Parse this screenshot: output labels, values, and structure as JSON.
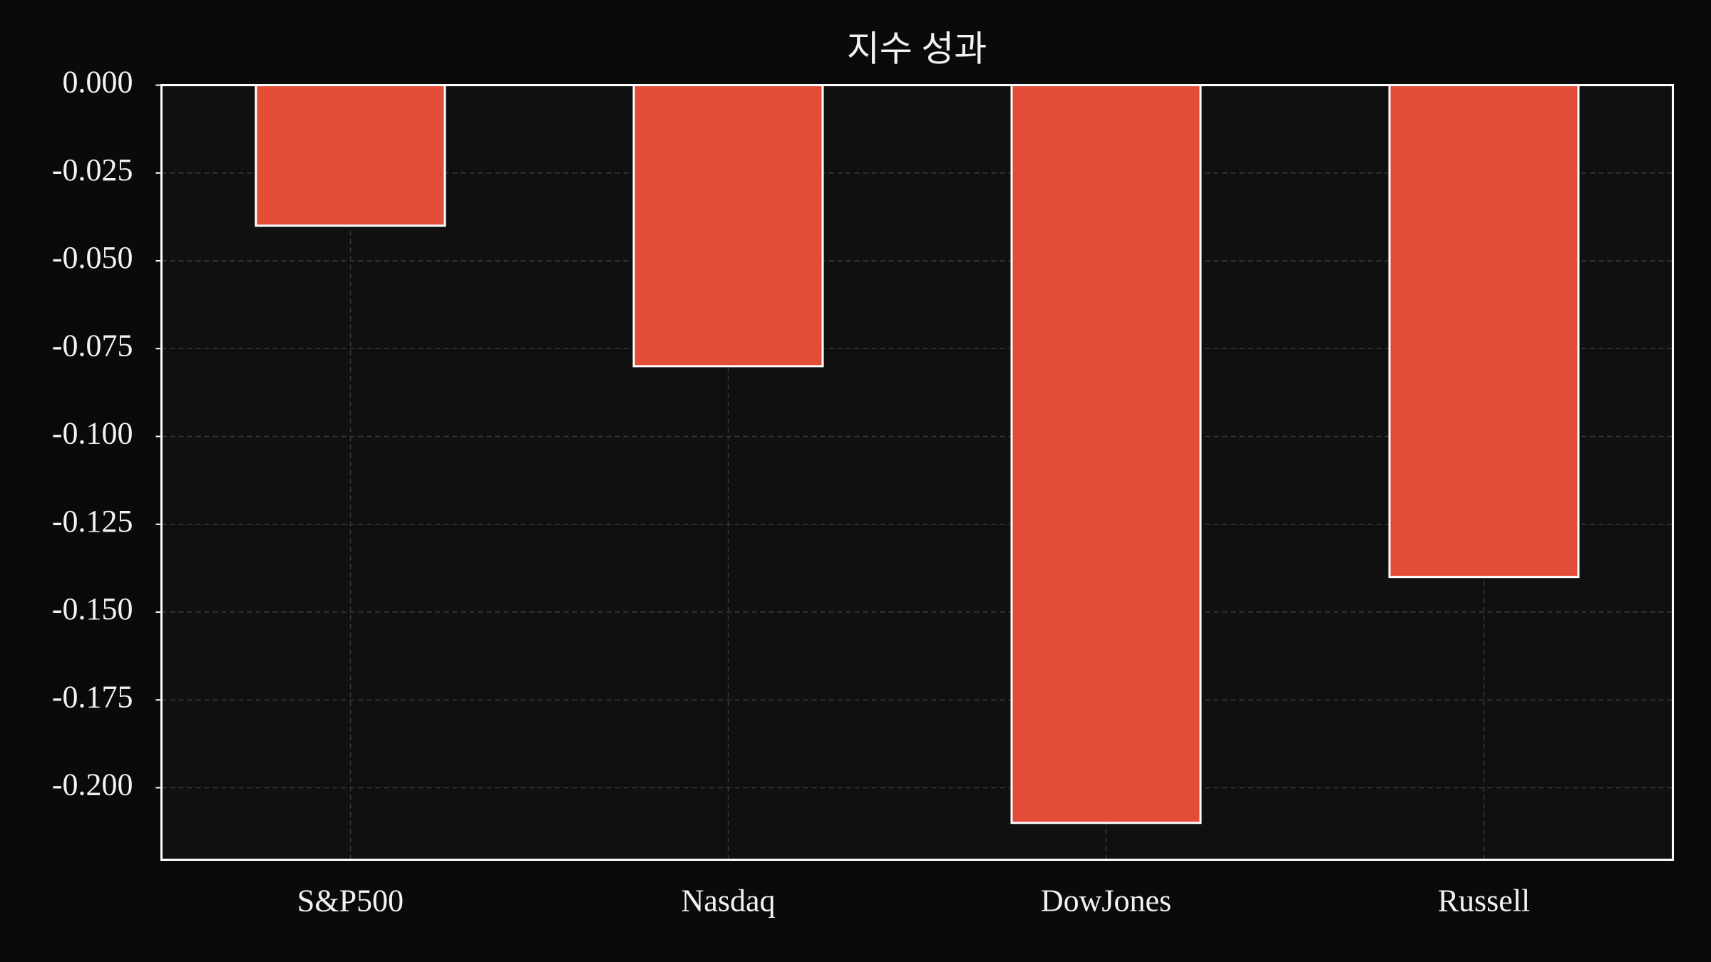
{
  "chart_data": {
    "type": "bar",
    "title": "지수 성과",
    "categories": [
      "S&P500",
      "Nasdaq",
      "DowJones",
      "Russell"
    ],
    "values": [
      -0.04,
      -0.08,
      -0.21,
      -0.14
    ],
    "color": "#e34c36",
    "ylim": [
      -0.2205,
      0
    ],
    "yticks": [
      {
        "value": 0,
        "label": "0.000"
      },
      -0.025,
      {
        "value": -0.05,
        "label": "-0.050"
      },
      -0.075,
      {
        "value": -0.1,
        "label": "-0.100"
      },
      -0.125,
      {
        "value": -0.15,
        "label": "-0.150"
      },
      -0.175,
      {
        "value": -0.2,
        "label": "-0.200"
      }
    ],
    "grid": true
  }
}
